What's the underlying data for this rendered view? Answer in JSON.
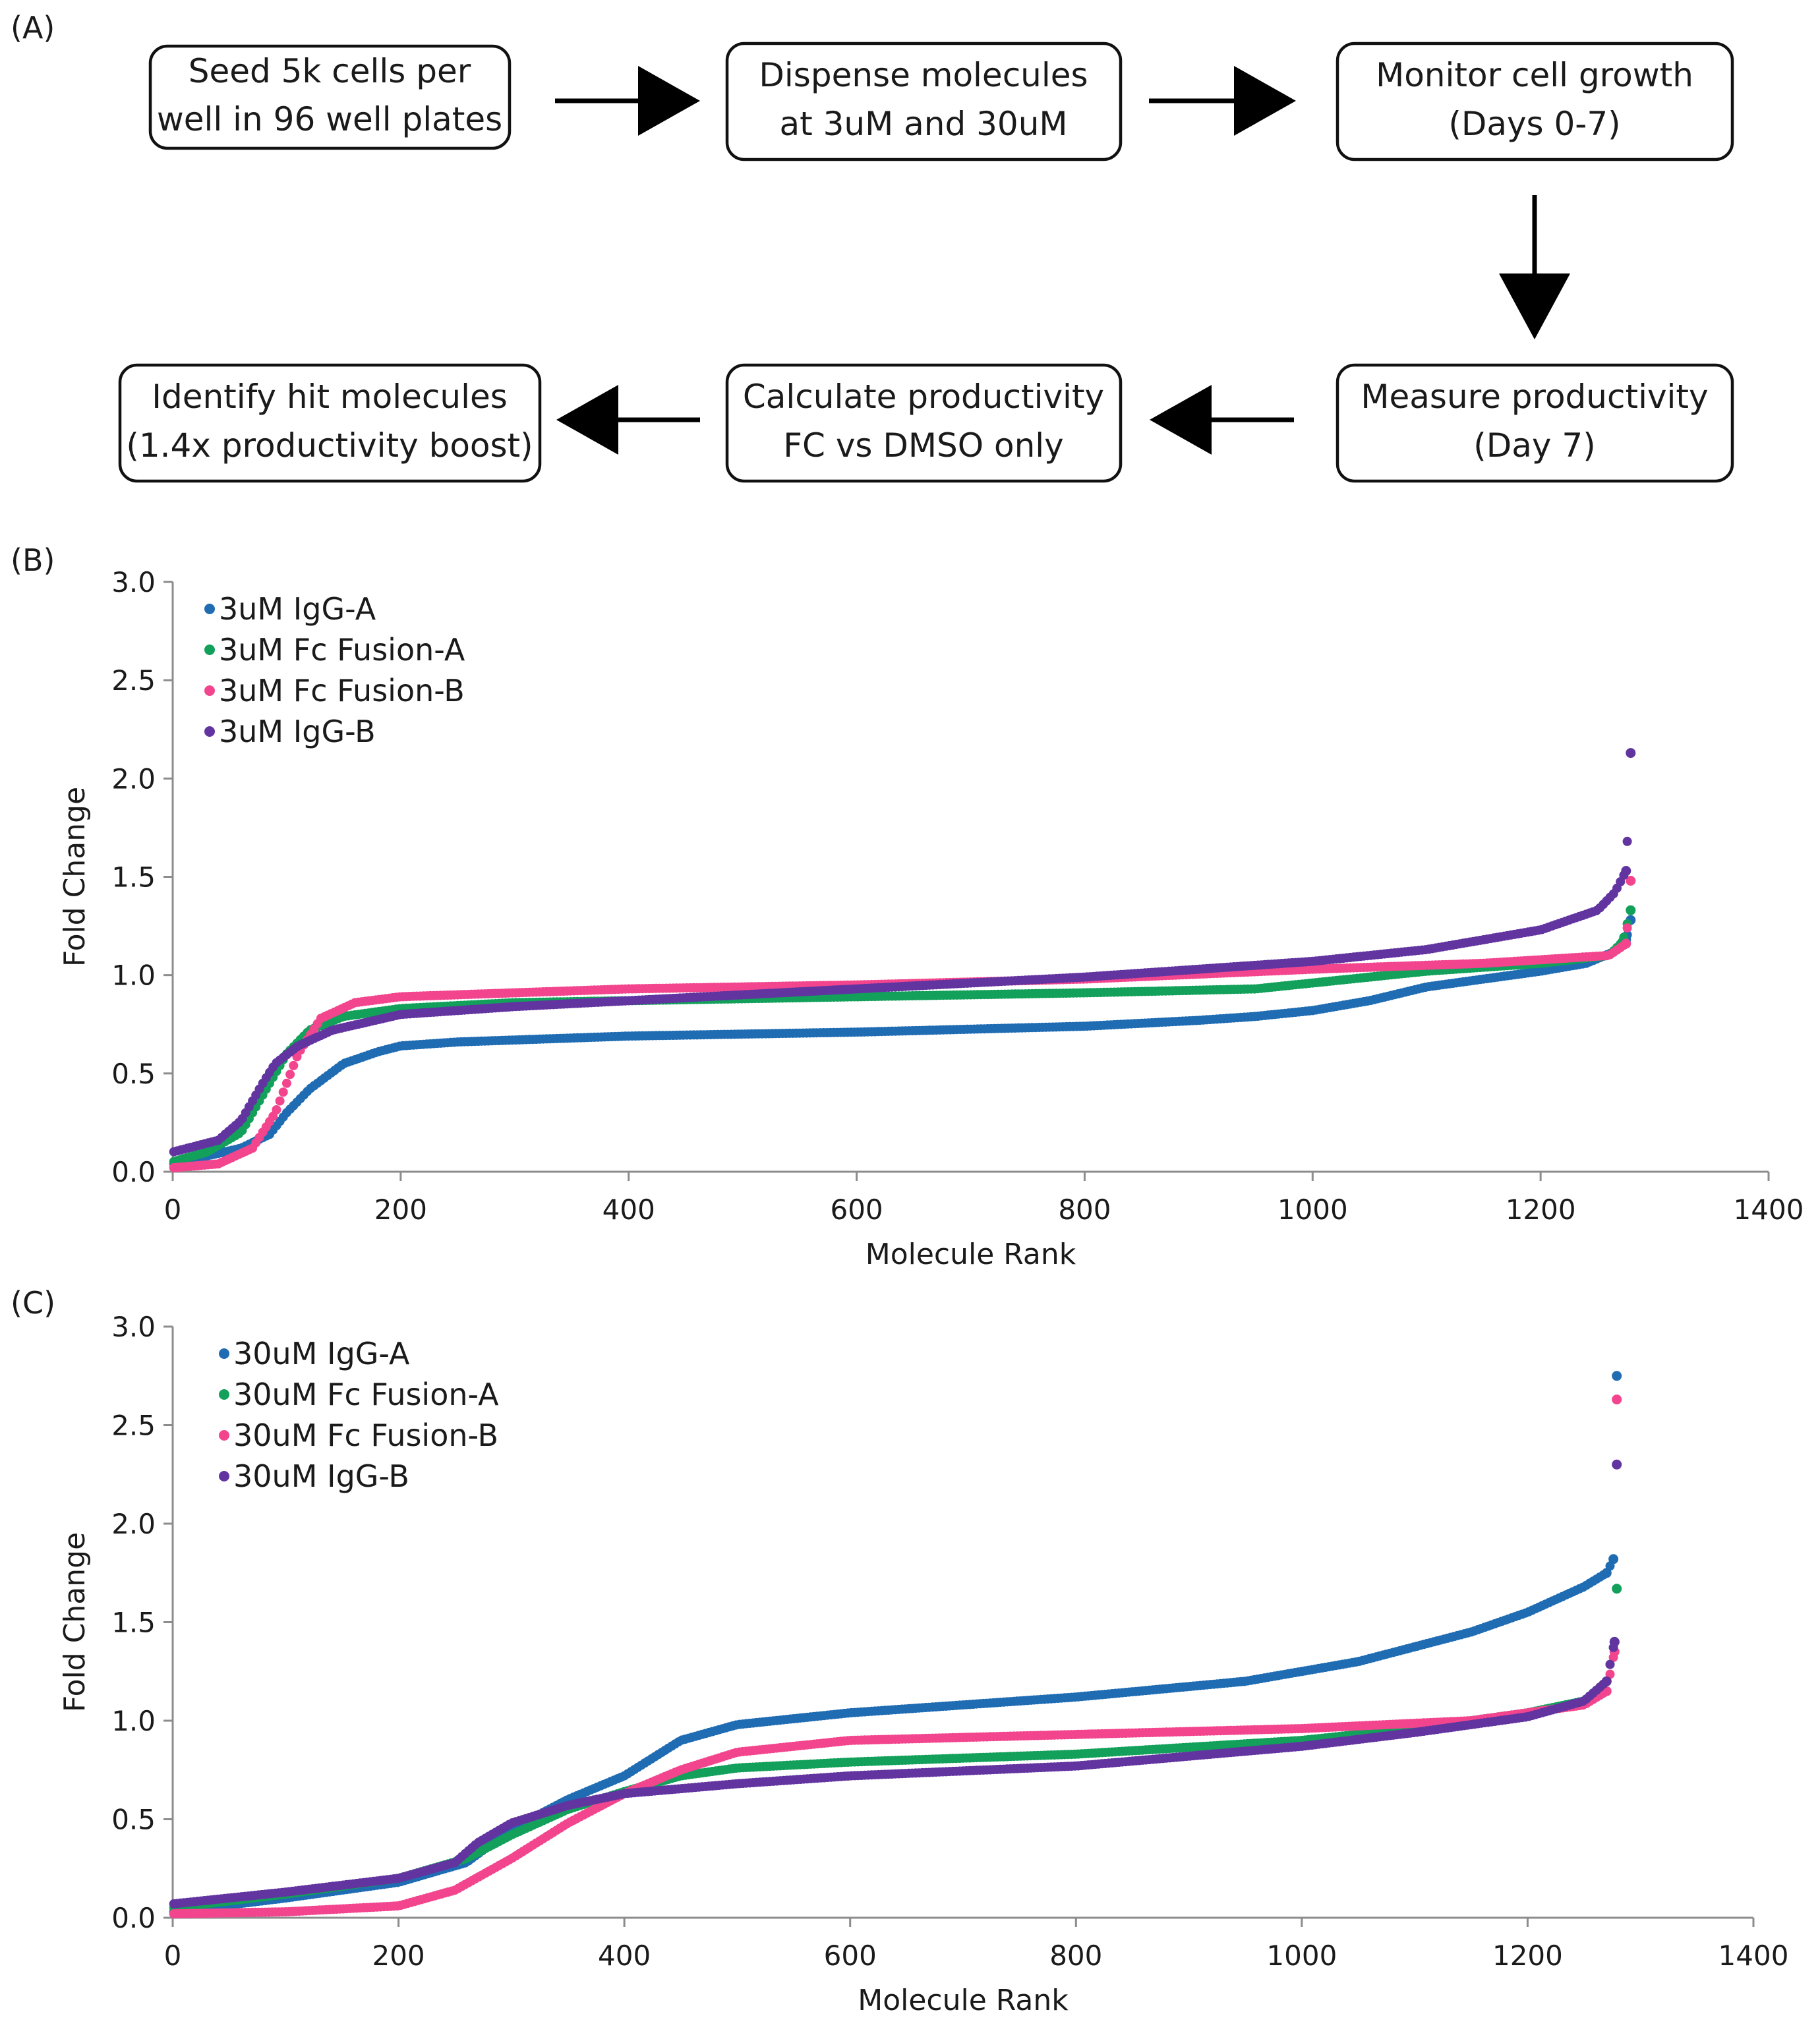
{
  "panels": {
    "a_label": "(A)",
    "b_label": "(B)",
    "c_label": "(C)"
  },
  "flow": {
    "step1": [
      "Seed 5k cells per",
      "well in 96 well plates"
    ],
    "step2": [
      "Dispense molecules",
      "at 3uM and 30uM"
    ],
    "step3": [
      "Monitor cell growth",
      "(Days 0-7)"
    ],
    "step4": [
      "Measure productivity",
      "(Day 7)"
    ],
    "step5": [
      "Calculate productivity",
      "FC vs DMSO only"
    ],
    "step6": [
      "Identify hit molecules",
      "(1.4x productivity boost)"
    ]
  },
  "colors": {
    "blue": "#1f6cb3",
    "green": "#12a05a",
    "pink": "#f2458e",
    "purple": "#6234a0"
  },
  "chart_data": [
    {
      "id": "B",
      "type": "scatter",
      "xlabel": "Molecule Rank",
      "ylabel": "Fold Change",
      "xlim": [
        0,
        1400
      ],
      "ylim": [
        0,
        3.0
      ],
      "xticks": [
        0,
        200,
        400,
        600,
        800,
        1000,
        1200,
        1400
      ],
      "yticks": [
        0.0,
        0.5,
        1.0,
        1.5,
        2.0,
        2.5,
        3.0
      ],
      "legend_position": "top-left",
      "n_points": 1279,
      "series": [
        {
          "name": "3uM IgG-A",
          "color": "#1f6cb3",
          "curve": [
            [
              0,
              0.04
            ],
            [
              30,
              0.08
            ],
            [
              60,
              0.12
            ],
            [
              85,
              0.19
            ],
            [
              100,
              0.3
            ],
            [
              120,
              0.42
            ],
            [
              150,
              0.55
            ],
            [
              180,
              0.61
            ],
            [
              200,
              0.64
            ],
            [
              250,
              0.66
            ],
            [
              400,
              0.69
            ],
            [
              600,
              0.71
            ],
            [
              800,
              0.74
            ],
            [
              900,
              0.77
            ],
            [
              950,
              0.79
            ],
            [
              1000,
              0.82
            ],
            [
              1050,
              0.87
            ],
            [
              1100,
              0.94
            ],
            [
              1150,
              0.98
            ],
            [
              1200,
              1.02
            ],
            [
              1240,
              1.06
            ],
            [
              1265,
              1.12
            ],
            [
              1275,
              1.18
            ],
            [
              1279,
              1.28
            ]
          ]
        },
        {
          "name": "3uM Fc Fusion-A",
          "color": "#12a05a",
          "curve": [
            [
              0,
              0.05
            ],
            [
              30,
              0.1
            ],
            [
              60,
              0.2
            ],
            [
              80,
              0.4
            ],
            [
              100,
              0.6
            ],
            [
              120,
              0.72
            ],
            [
              150,
              0.79
            ],
            [
              200,
              0.83
            ],
            [
              300,
              0.86
            ],
            [
              400,
              0.87
            ],
            [
              600,
              0.89
            ],
            [
              800,
              0.91
            ],
            [
              950,
              0.93
            ],
            [
              1000,
              0.96
            ],
            [
              1100,
              1.02
            ],
            [
              1200,
              1.06
            ],
            [
              1260,
              1.1
            ],
            [
              1272,
              1.17
            ],
            [
              1279,
              1.33
            ]
          ]
        },
        {
          "name": "3uM Fc Fusion-B",
          "color": "#f2458e",
          "curve": [
            [
              0,
              0.02
            ],
            [
              40,
              0.04
            ],
            [
              70,
              0.12
            ],
            [
              90,
              0.3
            ],
            [
              110,
              0.6
            ],
            [
              130,
              0.78
            ],
            [
              160,
              0.86
            ],
            [
              200,
              0.89
            ],
            [
              400,
              0.93
            ],
            [
              600,
              0.95
            ],
            [
              800,
              0.98
            ],
            [
              1000,
              1.03
            ],
            [
              1150,
              1.06
            ],
            [
              1260,
              1.1
            ],
            [
              1275,
              1.16
            ],
            [
              1279,
              1.48
            ]
          ]
        },
        {
          "name": "3uM IgG-B",
          "color": "#6234a0",
          "curve": [
            [
              0,
              0.1
            ],
            [
              20,
              0.13
            ],
            [
              40,
              0.16
            ],
            [
              60,
              0.26
            ],
            [
              80,
              0.46
            ],
            [
              90,
              0.55
            ],
            [
              110,
              0.64
            ],
            [
              140,
              0.72
            ],
            [
              200,
              0.8
            ],
            [
              300,
              0.84
            ],
            [
              400,
              0.87
            ],
            [
              600,
              0.93
            ],
            [
              800,
              0.99
            ],
            [
              1000,
              1.07
            ],
            [
              1100,
              1.13
            ],
            [
              1200,
              1.23
            ],
            [
              1250,
              1.33
            ],
            [
              1265,
              1.42
            ],
            [
              1275,
              1.53
            ],
            [
              1279,
              2.13
            ]
          ]
        }
      ]
    },
    {
      "id": "C",
      "type": "scatter",
      "xlabel": "Molecule Rank",
      "ylabel": "Fold Change",
      "xlim": [
        0,
        1400
      ],
      "ylim": [
        0,
        3.0
      ],
      "xticks": [
        0,
        200,
        400,
        600,
        800,
        1000,
        1200,
        1400
      ],
      "yticks": [
        0.0,
        0.5,
        1.0,
        1.5,
        2.0,
        2.5,
        3.0
      ],
      "legend_position": "top-left",
      "n_points": 1279,
      "series": [
        {
          "name": "30uM IgG-A",
          "color": "#1f6cb3",
          "curve": [
            [
              0,
              0.03
            ],
            [
              100,
              0.1
            ],
            [
              200,
              0.18
            ],
            [
              260,
              0.28
            ],
            [
              300,
              0.45
            ],
            [
              350,
              0.6
            ],
            [
              400,
              0.72
            ],
            [
              450,
              0.9
            ],
            [
              500,
              0.98
            ],
            [
              600,
              1.04
            ],
            [
              800,
              1.12
            ],
            [
              950,
              1.2
            ],
            [
              1050,
              1.3
            ],
            [
              1150,
              1.45
            ],
            [
              1200,
              1.55
            ],
            [
              1250,
              1.68
            ],
            [
              1270,
              1.75
            ],
            [
              1276,
              1.82
            ],
            [
              1279,
              2.75
            ]
          ]
        },
        {
          "name": "30uM Fc Fusion-A",
          "color": "#12a05a",
          "curve": [
            [
              0,
              0.05
            ],
            [
              100,
              0.12
            ],
            [
              200,
              0.2
            ],
            [
              260,
              0.3
            ],
            [
              300,
              0.42
            ],
            [
              350,
              0.55
            ],
            [
              400,
              0.64
            ],
            [
              450,
              0.72
            ],
            [
              500,
              0.76
            ],
            [
              600,
              0.79
            ],
            [
              800,
              0.83
            ],
            [
              1000,
              0.9
            ],
            [
              1100,
              0.96
            ],
            [
              1200,
              1.04
            ],
            [
              1250,
              1.1
            ],
            [
              1270,
              1.2
            ],
            [
              1277,
              1.4
            ],
            [
              1279,
              1.67
            ]
          ]
        },
        {
          "name": "30uM Fc Fusion-B",
          "color": "#f2458e",
          "curve": [
            [
              0,
              0.02
            ],
            [
              100,
              0.03
            ],
            [
              200,
              0.06
            ],
            [
              250,
              0.14
            ],
            [
              300,
              0.3
            ],
            [
              350,
              0.48
            ],
            [
              400,
              0.63
            ],
            [
              450,
              0.75
            ],
            [
              500,
              0.84
            ],
            [
              600,
              0.9
            ],
            [
              800,
              0.93
            ],
            [
              1000,
              0.96
            ],
            [
              1150,
              1.0
            ],
            [
              1250,
              1.08
            ],
            [
              1270,
              1.15
            ],
            [
              1277,
              1.35
            ],
            [
              1279,
              2.63
            ]
          ]
        },
        {
          "name": "30uM IgG-B",
          "color": "#6234a0",
          "curve": [
            [
              0,
              0.07
            ],
            [
              100,
              0.13
            ],
            [
              200,
              0.2
            ],
            [
              250,
              0.28
            ],
            [
              270,
              0.38
            ],
            [
              300,
              0.48
            ],
            [
              350,
              0.57
            ],
            [
              400,
              0.63
            ],
            [
              500,
              0.68
            ],
            [
              600,
              0.72
            ],
            [
              800,
              0.77
            ],
            [
              1000,
              0.87
            ],
            [
              1100,
              0.94
            ],
            [
              1200,
              1.02
            ],
            [
              1250,
              1.1
            ],
            [
              1270,
              1.2
            ],
            [
              1277,
              1.4
            ],
            [
              1279,
              2.3
            ]
          ]
        }
      ]
    }
  ]
}
